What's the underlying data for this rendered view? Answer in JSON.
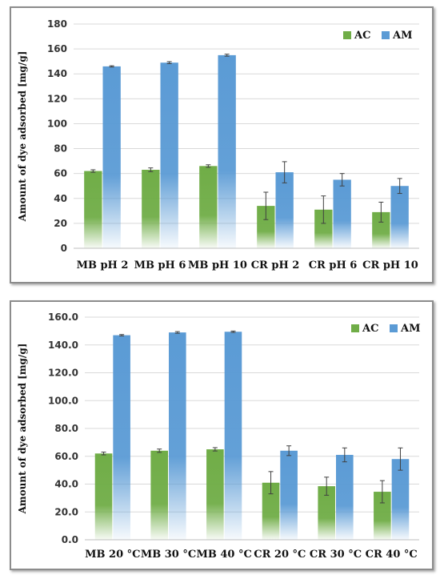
{
  "chart_data": [
    {
      "type": "bar",
      "title": "",
      "xlabel": "",
      "ylabel": "Amount of dye adsorbed [mg/g]",
      "ylim": [
        0,
        180
      ],
      "yticks": [
        "0",
        "20",
        "40",
        "60",
        "80",
        "100",
        "120",
        "140",
        "160",
        "180"
      ],
      "grid": true,
      "legend_position": "top-right",
      "categories": [
        "MB pH 2",
        "MB pH 6",
        "MB pH 10",
        "CR pH 2",
        "CR pH 6",
        "CR pH 10"
      ],
      "series": [
        {
          "name": "AC",
          "color": "#70ad47",
          "values": [
            62,
            63,
            66,
            34,
            31,
            29
          ],
          "errors": [
            1,
            1.5,
            1,
            11,
            11,
            8
          ]
        },
        {
          "name": "AM",
          "color": "#5b9bd5",
          "values": [
            146,
            149,
            155,
            61,
            55,
            50
          ],
          "errors": [
            0.5,
            0.8,
            0.8,
            8.5,
            5,
            6
          ]
        }
      ]
    },
    {
      "type": "bar",
      "title": "",
      "xlabel": "",
      "ylabel": "Amount of dye adsorbed [mg/g]",
      "ylim": [
        0,
        160
      ],
      "yticks": [
        "0.0",
        "20.0",
        "40.0",
        "60.0",
        "80.0",
        "100.0",
        "120.0",
        "140.0",
        "160.0"
      ],
      "grid": true,
      "legend_position": "top-right",
      "categories": [
        "MB 20 °C",
        "MB 30 °C",
        "MB 40 °C",
        "CR 20 °C",
        "CR 30 °C",
        "CR 40 °C"
      ],
      "series": [
        {
          "name": "AC",
          "color": "#70ad47",
          "values": [
            62,
            64,
            65,
            41,
            38.5,
            34.5
          ],
          "errors": [
            1,
            1.2,
            1.2,
            8,
            6.5,
            8
          ]
        },
        {
          "name": "AM",
          "color": "#5b9bd5",
          "values": [
            147,
            149,
            149.5,
            64,
            61,
            58
          ],
          "errors": [
            0.5,
            0.6,
            0.5,
            3.5,
            5,
            8
          ]
        }
      ]
    }
  ]
}
